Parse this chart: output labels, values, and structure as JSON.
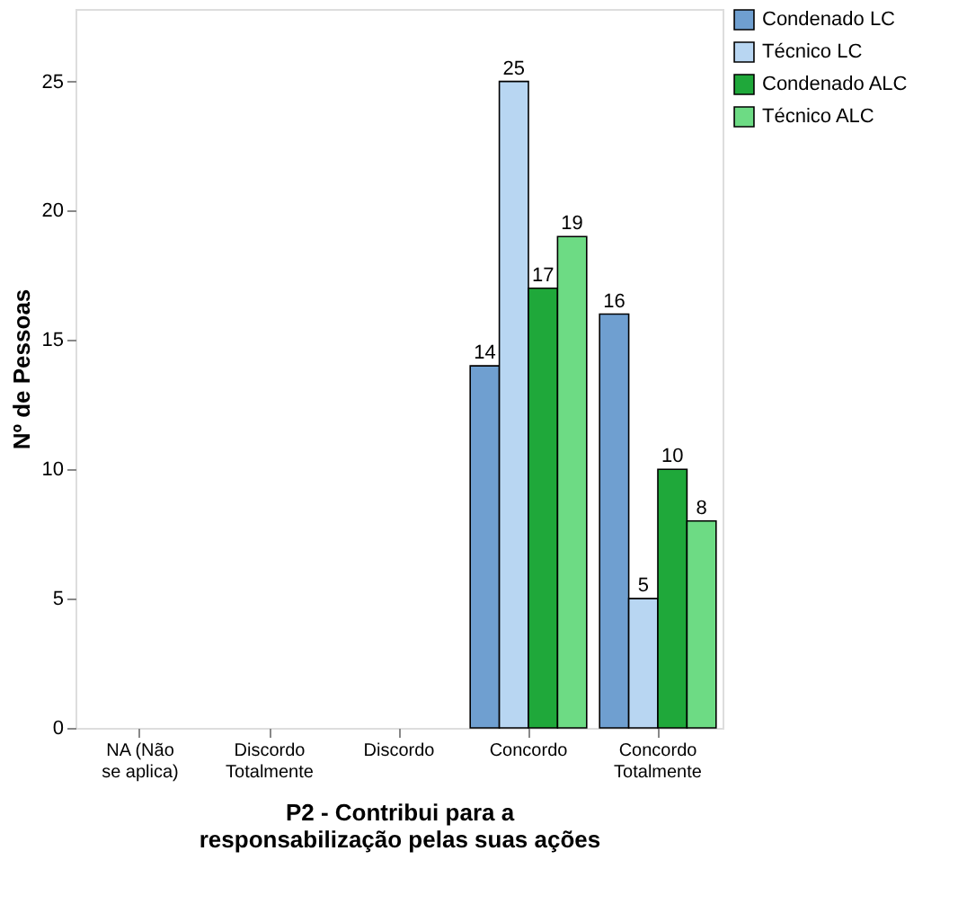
{
  "chart_data": {
    "type": "bar",
    "ylabel": "Nº de Pessoas",
    "xlabel": "P2 - Contribui para a responsabilização pelas suas ações",
    "categories": [
      "NA (Não se aplica)",
      "Discordo Totalmente",
      "Discordo",
      "Concordo",
      "Concordo Totalmente"
    ],
    "series": [
      {
        "name": "Condenado LC",
        "color": "#6f9fd0",
        "values": [
          null,
          null,
          null,
          14,
          16
        ]
      },
      {
        "name": "Técnico LC",
        "color": "#b8d6f2",
        "values": [
          null,
          null,
          null,
          25,
          5
        ]
      },
      {
        "name": "Condenado ALC",
        "color": "#1fa83a",
        "values": [
          null,
          null,
          null,
          17,
          10
        ]
      },
      {
        "name": "Técnico ALC",
        "color": "#6ddb84",
        "values": [
          null,
          null,
          null,
          19,
          8
        ]
      }
    ],
    "ylim": [
      0,
      27.8
    ],
    "yticks": [
      0,
      5,
      10,
      15,
      20,
      25
    ],
    "data_labels": true,
    "legend": "top right",
    "grid": false
  }
}
